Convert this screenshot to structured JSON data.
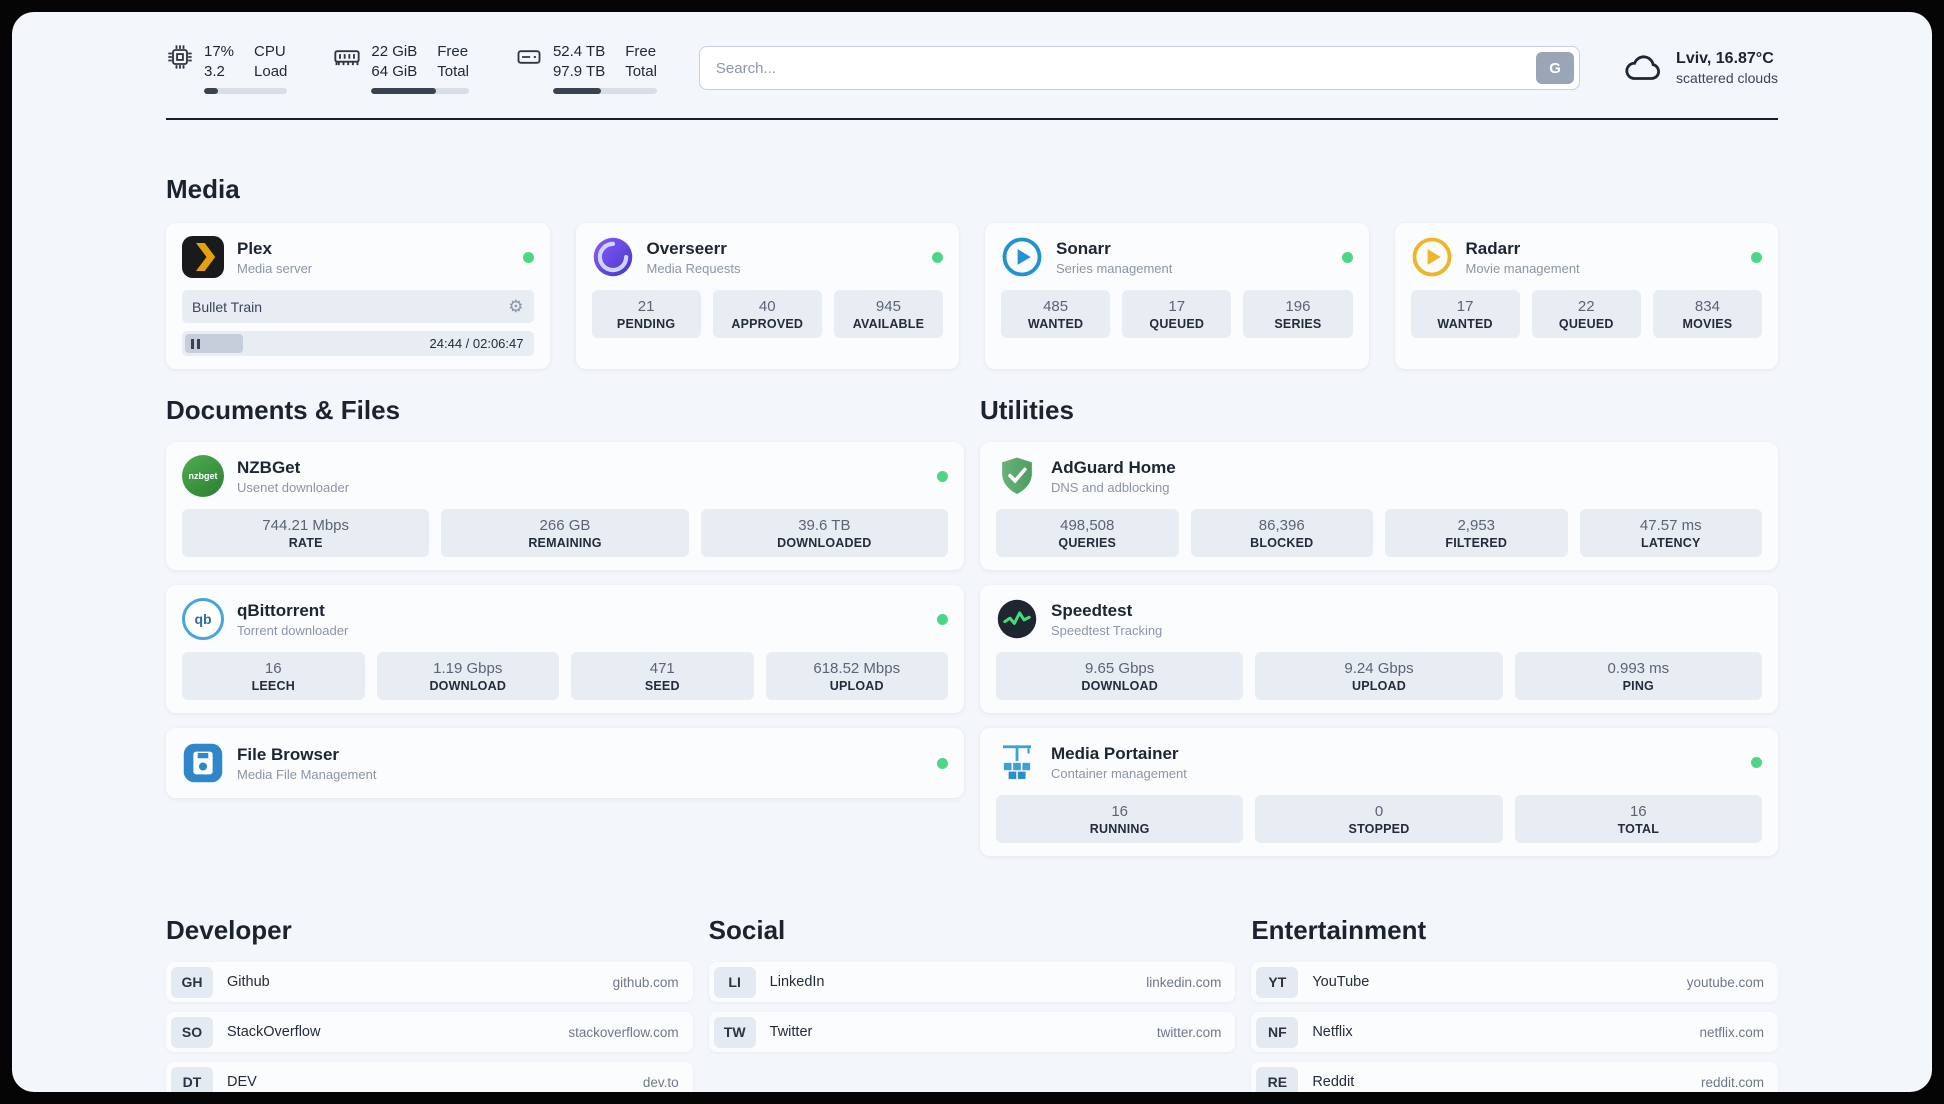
{
  "colors": {
    "status_online": "#4cd787",
    "page_background": "#f3f6fa",
    "stat_box": "#e8edf4",
    "plex_orange": "#e5a00d",
    "overseerr_purple": "#6d5cf6",
    "sonarr_blue": "#2193d1",
    "radarr_amber": "#f0b429",
    "nzbget_green": "#3e8e41",
    "adguard_green": "#5fbf6b",
    "qbittorrent_blue": "#4aa3df",
    "speedtest_pulse_green": "#3fe07c",
    "filebrowser_blue": "#2f86c9",
    "portainer_blue": "#3ea1d6"
  },
  "glyphs": {
    "gear": "⚙"
  },
  "topbar": {
    "cpu": {
      "value": "17%",
      "secondary": "3.2",
      "label_top": "CPU",
      "label_bottom": "Load",
      "bar_percent": 17
    },
    "memory": {
      "value": "22 GiB",
      "secondary": "64 GiB",
      "label_top": "Free",
      "label_bottom": "Total",
      "bar_percent": 66
    },
    "disk": {
      "value": "52.4 TB",
      "secondary": "97.9 TB",
      "label_top": "Free",
      "label_bottom": "Total",
      "bar_percent": 46
    },
    "search": {
      "placeholder": "Search...",
      "engine_label": "G"
    },
    "weather": {
      "location": "Lviv, 16.87°C",
      "condition": "scattered clouds"
    }
  },
  "sections": {
    "media": {
      "title": "Media"
    },
    "documents": {
      "title": "Documents & Files"
    },
    "utilities": {
      "title": "Utilities"
    },
    "developer": {
      "title": "Developer"
    },
    "social": {
      "title": "Social"
    },
    "entertainment": {
      "title": "Entertainment"
    }
  },
  "apps": {
    "plex": {
      "name": "Plex",
      "subtitle": "Media server",
      "online": true,
      "now_playing": "Bullet Train",
      "time": "24:44 / 02:06:47"
    },
    "overseerr": {
      "name": "Overseerr",
      "subtitle": "Media Requests",
      "online": true,
      "stats": [
        {
          "value": "21",
          "label": "PENDING"
        },
        {
          "value": "40",
          "label": "APPROVED"
        },
        {
          "value": "945",
          "label": "AVAILABLE"
        }
      ]
    },
    "sonarr": {
      "name": "Sonarr",
      "subtitle": "Series management",
      "online": true,
      "stats": [
        {
          "value": "485",
          "label": "WANTED"
        },
        {
          "value": "17",
          "label": "QUEUED"
        },
        {
          "value": "196",
          "label": "SERIES"
        }
      ]
    },
    "radarr": {
      "name": "Radarr",
      "subtitle": "Movie management",
      "online": true,
      "stats": [
        {
          "value": "17",
          "label": "WANTED"
        },
        {
          "value": "22",
          "label": "QUEUED"
        },
        {
          "value": "834",
          "label": "MOVIES"
        }
      ]
    },
    "nzbget": {
      "name": "NZBGet",
      "subtitle": "Usenet downloader",
      "online": true,
      "icon_text": "nzbget",
      "stats": [
        {
          "value": "744.21 Mbps",
          "label": "RATE"
        },
        {
          "value": "266 GB",
          "label": "REMAINING"
        },
        {
          "value": "39.6 TB",
          "label": "DOWNLOADED"
        }
      ]
    },
    "qbittorrent": {
      "name": "qBittorrent",
      "subtitle": "Torrent downloader",
      "online": true,
      "icon_text": "qb",
      "stats": [
        {
          "value": "16",
          "label": "LEECH"
        },
        {
          "value": "1.19 Gbps",
          "label": "DOWNLOAD"
        },
        {
          "value": "471",
          "label": "SEED"
        },
        {
          "value": "618.52 Mbps",
          "label": "UPLOAD"
        }
      ]
    },
    "filebrowser": {
      "name": "File Browser",
      "subtitle": "Media File Management",
      "online": true
    },
    "adguard": {
      "name": "AdGuard Home",
      "subtitle": "DNS and adblocking",
      "online": false,
      "stats": [
        {
          "value": "498,508",
          "label": "QUERIES"
        },
        {
          "value": "86,396",
          "label": "BLOCKED"
        },
        {
          "value": "2,953",
          "label": "FILTERED"
        },
        {
          "value": "47.57 ms",
          "label": "LATENCY"
        }
      ]
    },
    "speedtest": {
      "name": "Speedtest",
      "subtitle": "Speedtest Tracking",
      "online": false,
      "stats": [
        {
          "value": "9.65 Gbps",
          "label": "DOWNLOAD"
        },
        {
          "value": "9.24 Gbps",
          "label": "UPLOAD"
        },
        {
          "value": "0.993 ms",
          "label": "PING"
        }
      ]
    },
    "portainer": {
      "name": "Media Portainer",
      "subtitle": "Container management",
      "online": true,
      "stats": [
        {
          "value": "16",
          "label": "RUNNING"
        },
        {
          "value": "0",
          "label": "STOPPED"
        },
        {
          "value": "16",
          "label": "TOTAL"
        }
      ]
    }
  },
  "bookmarks": {
    "developer": [
      {
        "badge": "GH",
        "name": "Github",
        "url": "github.com"
      },
      {
        "badge": "SO",
        "name": "StackOverflow",
        "url": "stackoverflow.com"
      },
      {
        "badge": "DT",
        "name": "DEV",
        "url": "dev.to"
      }
    ],
    "social": [
      {
        "badge": "LI",
        "name": "LinkedIn",
        "url": "linkedin.com"
      },
      {
        "badge": "TW",
        "name": "Twitter",
        "url": "twitter.com"
      }
    ],
    "entertainment": [
      {
        "badge": "YT",
        "name": "YouTube",
        "url": "youtube.com"
      },
      {
        "badge": "NF",
        "name": "Netflix",
        "url": "netflix.com"
      },
      {
        "badge": "RE",
        "name": "Reddit",
        "url": "reddit.com"
      }
    ]
  }
}
